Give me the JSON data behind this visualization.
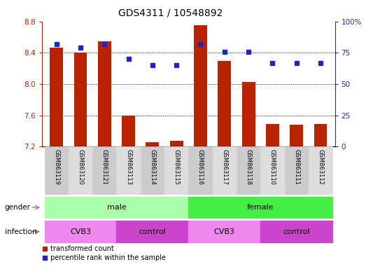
{
  "title": "GDS4311 / 10548892",
  "samples": [
    "GSM863119",
    "GSM863120",
    "GSM863121",
    "GSM863113",
    "GSM863114",
    "GSM863115",
    "GSM863116",
    "GSM863117",
    "GSM863118",
    "GSM863110",
    "GSM863111",
    "GSM863112"
  ],
  "red_values": [
    8.47,
    8.4,
    8.55,
    7.6,
    7.26,
    7.27,
    8.75,
    8.3,
    8.03,
    7.49,
    7.48,
    7.49
  ],
  "blue_values": [
    82,
    79,
    82,
    70,
    65,
    65,
    82,
    76,
    76,
    67,
    67,
    67
  ],
  "ylim_left": [
    7.2,
    8.8
  ],
  "ylim_right": [
    0,
    100
  ],
  "yticks_left": [
    7.2,
    7.6,
    8.0,
    8.4,
    8.8
  ],
  "yticks_right": [
    0,
    25,
    50,
    75,
    100
  ],
  "ytick_labels_right": [
    "0",
    "25",
    "50",
    "75",
    "100%"
  ],
  "red_color": "#bb2200",
  "blue_color": "#2222cc",
  "bar_bottom": 7.2,
  "dot_grid_lines": [
    8.4,
    8.0,
    7.6
  ],
  "title_fontsize": 10,
  "tick_fontsize": 7.5,
  "label_fontsize": 7.5,
  "gender_groups": [
    {
      "label": "male",
      "start": 0,
      "end": 5,
      "color": "#aaffaa"
    },
    {
      "label": "female",
      "start": 6,
      "end": 11,
      "color": "#44ee44"
    }
  ],
  "infection_groups": [
    {
      "label": "CVB3",
      "start": 0,
      "end": 2,
      "color": "#ee88ee"
    },
    {
      "label": "control",
      "start": 3,
      "end": 5,
      "color": "#cc44cc"
    },
    {
      "label": "CVB3",
      "start": 6,
      "end": 8,
      "color": "#ee88ee"
    },
    {
      "label": "control",
      "start": 9,
      "end": 11,
      "color": "#cc44cc"
    }
  ],
  "legend_red": "transformed count",
  "legend_blue": "percentile rank within the sample"
}
